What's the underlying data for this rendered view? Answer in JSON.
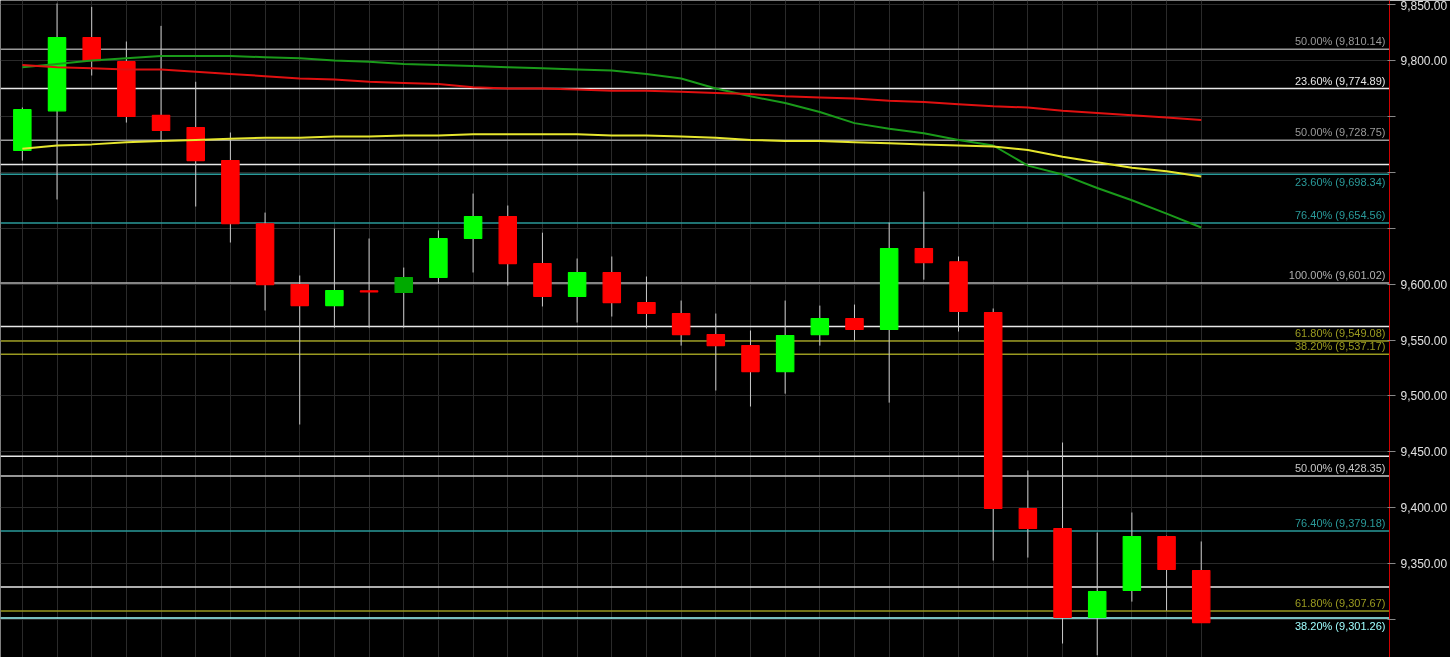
{
  "chart_data": {
    "type": "candlestick",
    "categories": [
      null,
      null,
      null,
      null,
      null,
      null,
      null,
      null,
      null,
      null,
      null,
      null,
      null,
      null,
      null,
      null,
      null,
      null,
      null,
      null,
      null,
      null,
      null,
      null,
      null,
      null,
      null,
      null,
      null,
      null,
      null,
      null,
      null,
      null,
      null
    ],
    "ohlc": [
      [
        9719.5,
        9758,
        9710.5,
        9756
      ],
      [
        9755,
        9851,
        9675.7,
        9820.6
      ],
      [
        9820.6,
        9848,
        9786.6,
        9800
      ],
      [
        9799,
        9817,
        9744.5,
        9750
      ],
      [
        9751,
        9831,
        9728.4,
        9737.4
      ],
      [
        9740,
        9781,
        9669.4,
        9710.5
      ],
      [
        9710.5,
        9735.6,
        9637.2,
        9654
      ],
      [
        9654,
        9664,
        9576.4,
        9599.6
      ],
      [
        9599.6,
        9607.7,
        9474.4,
        9580.8
      ],
      [
        9580.8,
        9649.7,
        9561,
        9594.3
      ],
      [
        9594,
        9640.8,
        9561,
        9593
      ],
      [
        9592.5,
        9614.8,
        9561,
        9605.9
      ],
      [
        9605.9,
        9648,
        9600.5,
        9640.8
      ],
      [
        9640.8,
        9681,
        9610.4,
        9660.5
      ],
      [
        9660.5,
        9670.3,
        9598.7,
        9618.4
      ],
      [
        9618.4,
        9646,
        9580,
        9588.9
      ],
      [
        9588.9,
        9622.9,
        9565.6,
        9610.4
      ],
      [
        9610.4,
        9624.7,
        9571,
        9583.5
      ],
      [
        9583.5,
        9606.8,
        9560.3,
        9573.7
      ],
      [
        9573.7,
        9585.3,
        9545,
        9554.9
      ],
      [
        9554.9,
        9573.7,
        9504.8,
        9545
      ],
      [
        9545,
        9558.5,
        9490.5,
        9521.8
      ],
      [
        9521.8,
        9585.3,
        9502,
        9554
      ],
      [
        9554.9,
        9580.8,
        9545,
        9569.2
      ],
      [
        9569.2,
        9581.7,
        9549.5,
        9559.4
      ],
      [
        9559.4,
        9655,
        9494,
        9631.8
      ],
      [
        9631.8,
        9682.8,
        9604,
        9619.3
      ],
      [
        9620,
        9624.7,
        9557.6,
        9575.5
      ],
      [
        9574.6,
        9578.2,
        9352.7,
        9399.3
      ],
      [
        9399.3,
        9433.3,
        9355.4,
        9381.4
      ],
      [
        9381.4,
        9458.3,
        9278.5,
        9301.8
      ],
      [
        9301.8,
        9377.8,
        9268,
        9325
      ],
      [
        9326,
        9395.7,
        9316,
        9374.2
      ],
      [
        9374.2,
        9375,
        9308,
        9344.7
      ],
      [
        9343.8,
        9369.8,
        9297,
        9297.23
      ]
    ],
    "colors": [
      "#00ff00",
      "#00ff00",
      "#ff0000",
      "#ff0000",
      "#ff0000",
      "#ff0000",
      "#ff0000",
      "#ff0000",
      "#ff0000",
      "#00ff00",
      "#ff0000",
      "#00aa00",
      "#00ff00",
      "#00ff00",
      "#ff0000",
      "#ff0000",
      "#00ff00",
      "#ff0000",
      "#ff0000",
      "#ff0000",
      "#ff0000",
      "#ff0000",
      "#00ff00",
      "#00ff00",
      "#ff0000",
      "#00ff00",
      "#ff0000",
      "#ff0000",
      "#ff0000",
      "#ff0000",
      "#ff0000",
      "#00ff00",
      "#00ff00",
      "#ff0000",
      "#ff0000"
    ],
    "series": [
      {
        "type": "line",
        "color": "#1a9a1a",
        "values": [
          9794,
          9797,
          9800,
          9802,
          9804,
          9804,
          9804,
          9803,
          9802,
          9800,
          9799,
          9797,
          9796,
          9795,
          9794,
          9793,
          9792,
          9791,
          9788,
          9784,
          9775,
          9768,
          9762,
          9754,
          9744,
          9739,
          9735,
          9729,
          9724,
          9706,
          9698,
          9686,
          9675,
          9663,
          9650.64
        ]
      },
      {
        "type": "line",
        "color": "#e6e62e",
        "values": [
          9721,
          9724,
          9725,
          9727,
          9728,
          9729,
          9730,
          9731,
          9731,
          9732,
          9732,
          9733,
          9733,
          9734,
          9734,
          9734,
          9734,
          9733,
          9733,
          9732,
          9731,
          9729,
          9728,
          9728,
          9727,
          9726,
          9725,
          9724,
          9723,
          9720,
          9714,
          9709,
          9704,
          9701,
          9696.31
        ]
      },
      {
        "type": "line",
        "color": "#e01010",
        "values": [
          9796,
          9794,
          9793,
          9792,
          9792,
          9790,
          9788,
          9786,
          9784,
          9783,
          9781,
          9780,
          9779,
          9776,
          9775,
          9775,
          9774,
          9773,
          9773,
          9772,
          9771,
          9770,
          9768,
          9767,
          9766,
          9764,
          9763,
          9761,
          9759,
          9758,
          9755,
          9753,
          9751,
          9749,
          9746.89
        ]
      }
    ],
    "ylim": [
      9266,
      9853.7
    ],
    "yticks": [
      {
        "value": 9300,
        "label": null
      },
      {
        "value": 9350,
        "label": "9,350.00"
      },
      {
        "value": 9400,
        "label": "9,400.00"
      },
      {
        "value": 9450,
        "label": "9,450.00"
      },
      {
        "value": 9500,
        "label": "9,500.00"
      },
      {
        "value": 9550,
        "label": "9,550.00"
      },
      {
        "value": 9600,
        "label": "9,600.00"
      },
      {
        "value": 9650,
        "label": null
      },
      {
        "value": 9700,
        "label": null
      },
      {
        "value": 9750,
        "label": null
      },
      {
        "value": 9800,
        "label": "9,800.00"
      },
      {
        "value": 9850,
        "label": "9,850.00"
      }
    ],
    "ref_lines": [
      {
        "axis": "y",
        "value": 9810.14,
        "label": "50.00% (9,810.14)",
        "color": "#9a9a9a"
      },
      {
        "axis": "y",
        "value": 9774.89,
        "label": "23.60% (9,774.89)",
        "color": "#e8e8e8"
      },
      {
        "axis": "y",
        "value": 9728.75,
        "label": "50.00% (9,728.75)",
        "color": "#9a9a9a"
      },
      {
        "axis": "y",
        "value": 9707.0,
        "label": null,
        "color": "#e8e8e8"
      },
      {
        "axis": "y",
        "value": 9698.34,
        "label": "23.60% (9,698.34)",
        "color": "#2a9a9a"
      },
      {
        "axis": "y",
        "value": 9654.56,
        "label": "76.40% (9,654.56)",
        "color": "#2a9a9a"
      },
      {
        "axis": "y",
        "value": 9601.02,
        "label": "100.00% (9,601.02)",
        "color": "#b0b0b0"
      },
      {
        "axis": "y",
        "value": 9562.0,
        "label": null,
        "color": "#e8e8e8"
      },
      {
        "axis": "y",
        "value": 9549.08,
        "label": "61.80% (9,549.08)",
        "color": "#9a9a20"
      },
      {
        "axis": "y",
        "value": 9537.17,
        "label": "38.20% (9,537.17)",
        "color": "#9a9a20"
      },
      {
        "axis": "y",
        "value": 9446.0,
        "label": null,
        "color": "#e8e8e8"
      },
      {
        "axis": "y",
        "value": 9428.35,
        "label": "50.00% (9,428.35)",
        "color": "#c8c8c8"
      },
      {
        "axis": "y",
        "value": 9379.18,
        "label": "76.40% (9,379.18)",
        "color": "#2a9a9a"
      },
      {
        "axis": "y",
        "value": 9329.0,
        "label": null,
        "color": "#e8e8e8"
      },
      {
        "axis": "y",
        "value": 9307.67,
        "label": "61.80% (9,307.67)",
        "color": "#9a9a20"
      },
      {
        "axis": "y",
        "value": 9301.26,
        "label": "38.20% (9,301.26)",
        "color": "#a0ffff"
      }
    ],
    "grid": true,
    "tick_labels": "y"
  }
}
